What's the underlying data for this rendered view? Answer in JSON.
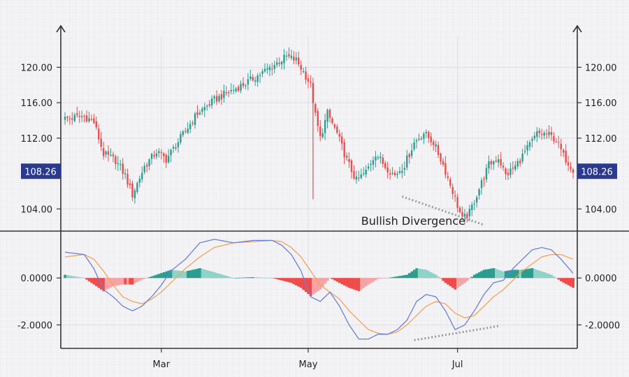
{
  "chart_data": {
    "type": "candlestick",
    "colors": {
      "up": "#2a9d8f",
      "down": "#ef4b4b",
      "up_light": "#8fd3c8",
      "down_light": "#f5a3a3",
      "macd_line": "#6b7fd7",
      "signal_line": "#f4a259",
      "price_tag_bg": "#2b3a8c",
      "axis": "#333333",
      "grid": "#dcdce3",
      "divergence": "#9a9a9a"
    },
    "x_ticks": [
      {
        "label": "Mar",
        "day": 40
      },
      {
        "label": "May",
        "day": 101
      },
      {
        "label": "Jul",
        "day": 163
      }
    ],
    "price_panel": {
      "y_ticks": [
        {
          "label": "104.00",
          "value": 104
        },
        {
          "label": "112.00",
          "value": 112
        },
        {
          "label": "116.00",
          "value": 116
        },
        {
          "label": "120.00",
          "value": 120
        }
      ],
      "ylim": [
        101.5,
        123.5
      ],
      "last_price": {
        "label": "108.26",
        "value": 108.26
      },
      "annotation": "Bullish Divergence",
      "divergence_line": {
        "from": [
          140,
          105.4
        ],
        "to": [
          174,
          102.2
        ]
      },
      "waypoints": [
        [
          0,
          114.2
        ],
        [
          8,
          114.5
        ],
        [
          12,
          113.8
        ],
        [
          16,
          110.2
        ],
        [
          21,
          109.5
        ],
        [
          25,
          107.8
        ],
        [
          28,
          105.6
        ],
        [
          33,
          108.8
        ],
        [
          38,
          110.5
        ],
        [
          42,
          109.6
        ],
        [
          48,
          112.0
        ],
        [
          55,
          114.8
        ],
        [
          62,
          116.3
        ],
        [
          68,
          117.2
        ],
        [
          75,
          118.2
        ],
        [
          82,
          119.4
        ],
        [
          88,
          120.5
        ],
        [
          92,
          121.2
        ],
        [
          96,
          120.8
        ],
        [
          99,
          119.5
        ],
        [
          102,
          118.0
        ],
        [
          104,
          114.5
        ],
        [
          106,
          112.0
        ],
        [
          109,
          114.8
        ],
        [
          113,
          112.5
        ],
        [
          117,
          109.5
        ],
        [
          121,
          107.2
        ],
        [
          125,
          108.2
        ],
        [
          129,
          110.3
        ],
        [
          133,
          108.8
        ],
        [
          137,
          107.8
        ],
        [
          141,
          109.0
        ],
        [
          145,
          111.5
        ],
        [
          149,
          112.6
        ],
        [
          153,
          111.5
        ],
        [
          157,
          109.0
        ],
        [
          161,
          106.0
        ],
        [
          165,
          102.8
        ],
        [
          168,
          103.6
        ],
        [
          172,
          106.3
        ],
        [
          176,
          109.0
        ],
        [
          180,
          109.8
        ],
        [
          183,
          107.8
        ],
        [
          187,
          108.8
        ],
        [
          192,
          110.8
        ],
        [
          196,
          112.5
        ],
        [
          200,
          112.5
        ],
        [
          204,
          111.8
        ],
        [
          207,
          110.0
        ],
        [
          211,
          108.5
        ]
      ]
    },
    "macd_panel": {
      "y_ticks": [
        {
          "label": "0.0000",
          "value": 0
        },
        {
          "label": "-2.0000",
          "value": -2
        }
      ],
      "ylim": [
        -3.0,
        2.0
      ],
      "divergence_line": {
        "from": [
          145,
          -2.65
        ],
        "to": [
          180,
          -2.05
        ]
      },
      "macd_waypoints": [
        [
          0,
          1.1
        ],
        [
          8,
          1.0
        ],
        [
          12,
          0.4
        ],
        [
          16,
          -0.5
        ],
        [
          20,
          -0.8
        ],
        [
          24,
          -1.2
        ],
        [
          28,
          -1.4
        ],
        [
          32,
          -1.2
        ],
        [
          36,
          -0.8
        ],
        [
          40,
          -0.3
        ],
        [
          44,
          0.3
        ],
        [
          50,
          0.8
        ],
        [
          56,
          1.5
        ],
        [
          62,
          1.65
        ],
        [
          70,
          1.5
        ],
        [
          78,
          1.6
        ],
        [
          86,
          1.6
        ],
        [
          90,
          1.4
        ],
        [
          94,
          1.0
        ],
        [
          98,
          0.3
        ],
        [
          102,
          -0.8
        ],
        [
          106,
          -1.0
        ],
        [
          110,
          -0.6
        ],
        [
          114,
          -1.2
        ],
        [
          118,
          -2.0
        ],
        [
          122,
          -2.6
        ],
        [
          126,
          -2.6
        ],
        [
          130,
          -2.4
        ],
        [
          134,
          -2.4
        ],
        [
          138,
          -2.2
        ],
        [
          142,
          -1.8
        ],
        [
          146,
          -1.0
        ],
        [
          150,
          -0.7
        ],
        [
          154,
          -0.8
        ],
        [
          158,
          -1.4
        ],
        [
          162,
          -2.2
        ],
        [
          166,
          -2.0
        ],
        [
          170,
          -1.4
        ],
        [
          174,
          -0.7
        ],
        [
          178,
          -0.2
        ],
        [
          182,
          -0.1
        ],
        [
          186,
          0.4
        ],
        [
          190,
          0.8
        ],
        [
          194,
          1.2
        ],
        [
          198,
          1.3
        ],
        [
          202,
          1.2
        ],
        [
          206,
          0.8
        ],
        [
          211,
          0.2
        ]
      ],
      "signal_waypoints": [
        [
          0,
          0.9
        ],
        [
          8,
          1.0
        ],
        [
          12,
          0.8
        ],
        [
          16,
          0.3
        ],
        [
          20,
          -0.3
        ],
        [
          24,
          -0.8
        ],
        [
          28,
          -1.0
        ],
        [
          32,
          -1.1
        ],
        [
          36,
          -0.9
        ],
        [
          40,
          -0.6
        ],
        [
          44,
          -0.2
        ],
        [
          50,
          0.4
        ],
        [
          56,
          0.9
        ],
        [
          62,
          1.3
        ],
        [
          70,
          1.5
        ],
        [
          78,
          1.55
        ],
        [
          86,
          1.6
        ],
        [
          90,
          1.55
        ],
        [
          94,
          1.3
        ],
        [
          98,
          0.9
        ],
        [
          102,
          0.3
        ],
        [
          106,
          -0.3
        ],
        [
          110,
          -0.6
        ],
        [
          114,
          -0.9
        ],
        [
          118,
          -1.4
        ],
        [
          122,
          -1.8
        ],
        [
          126,
          -2.2
        ],
        [
          130,
          -2.35
        ],
        [
          134,
          -2.4
        ],
        [
          138,
          -2.3
        ],
        [
          142,
          -2.0
        ],
        [
          146,
          -1.6
        ],
        [
          150,
          -1.2
        ],
        [
          154,
          -1.0
        ],
        [
          158,
          -1.1
        ],
        [
          162,
          -1.5
        ],
        [
          166,
          -1.7
        ],
        [
          170,
          -1.6
        ],
        [
          174,
          -1.2
        ],
        [
          178,
          -0.8
        ],
        [
          182,
          -0.5
        ],
        [
          186,
          -0.1
        ],
        [
          190,
          0.3
        ],
        [
          194,
          0.6
        ],
        [
          198,
          0.9
        ],
        [
          202,
          1.0
        ],
        [
          206,
          1.0
        ],
        [
          211,
          0.8
        ]
      ]
    }
  }
}
